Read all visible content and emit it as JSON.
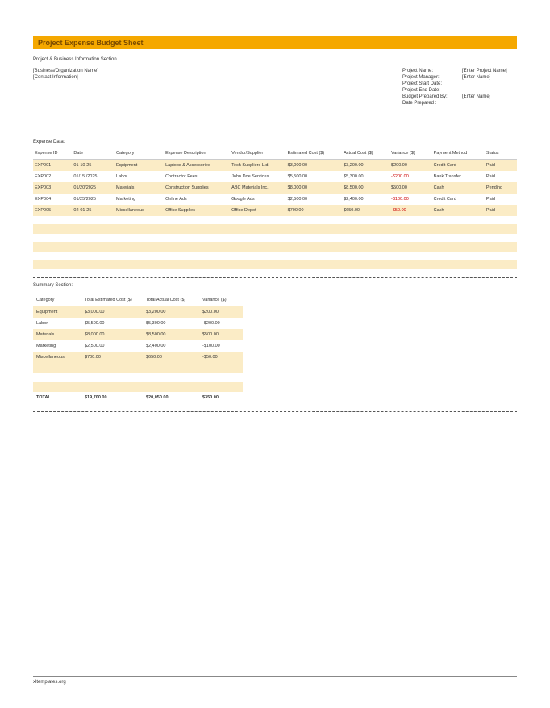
{
  "title": "Project Expense Budget Sheet",
  "section_info": "Project & Business Information Section",
  "left_info": [
    "[Business/Organization Name]",
    "[Contact Information]"
  ],
  "right_info": [
    {
      "k": "Project Name:",
      "v": "[Enter Project Name]"
    },
    {
      "k": "Project Manager:",
      "v": "[Enter Name]"
    },
    {
      "k": "Project Start Date:",
      "v": ""
    },
    {
      "k": "Project End Date:",
      "v": ""
    },
    {
      "k": "Budget Prepared By:",
      "v": "[Enter Name]"
    },
    {
      "k": "Date Prepared :",
      "v": ""
    }
  ],
  "expense_label": "Expense Data:",
  "exp_headers": [
    "Expense ID",
    "Date",
    "Category",
    "Expense Description",
    "Vendor/Supplier",
    "Estimated Cost ($)",
    "Actual Cost ($)",
    "Variance ($)",
    "Payment Method",
    "Status"
  ],
  "exp_rows": [
    {
      "d": [
        "EXP001",
        "01-10-25",
        "Equipment",
        "Laptops & Accessories",
        "Tech Suppliers Ltd.",
        "$3,000.00",
        "$3,200.00",
        "$200.00",
        "Credit Card",
        "Paid"
      ],
      "neg": false
    },
    {
      "d": [
        "EXP002",
        "01/15 /2025",
        "Labor",
        "Contractor Fees",
        "John Doe Services",
        "$5,500.00",
        "$5,300.00",
        "-$200.00",
        "Bank Transfer",
        "Paid"
      ],
      "neg": true
    },
    {
      "d": [
        "EXP003",
        "01/20/2025",
        "Materials",
        "Construction Supplies",
        "ABC Materials Inc.",
        "$8,000.00",
        "$8,500.00",
        "$500.00",
        "Cash",
        "Pending"
      ],
      "neg": false
    },
    {
      "d": [
        "EXP004",
        "01/25/2025",
        "Marketing",
        "Online Ads",
        "Google Ads",
        "$2,500.00",
        "$2,400.00",
        "-$100.00",
        "Credit Card",
        "Paid"
      ],
      "neg": true
    },
    {
      "d": [
        "EXP005",
        "02-01-25",
        "Miscellaneous",
        "Office Supplies",
        "Office Depot",
        "$700.00",
        "$650.00",
        "-$50.00",
        "Cash",
        "Paid"
      ],
      "neg": true
    }
  ],
  "summary_label": "Summary Section:",
  "sum_headers": [
    "Category",
    "Total Estimated Cost ($)",
    "Total Actual Cost ($)",
    "Variance ($)"
  ],
  "sum_rows": [
    [
      "Equipment",
      "$3,000.00",
      "$3,200.00",
      "$200.00"
    ],
    [
      "Labor",
      "$5,500.00",
      "$5,300.00",
      "-$200.00"
    ],
    [
      "Materials",
      "$8,000.00",
      "$8,500.00",
      "$500.00"
    ],
    [
      "Marketing",
      "$2,500.00",
      "$2,400.00",
      "-$100.00"
    ],
    [
      "Miscellaneous",
      "$700.00",
      "$650.00",
      "-$50.00"
    ]
  ],
  "total_row": [
    "TOTAL",
    "$19,700.00",
    "$20,050.00",
    "$350.00"
  ],
  "footer": "xltemplates.org",
  "colors": {
    "accent": "#f5a800",
    "stripe": "#fbecc6",
    "title_text": "#7a4a00",
    "neg": "#c00"
  },
  "col_widths": {
    "exp": [
      "46",
      "50",
      "58",
      "78",
      "66",
      "66",
      "56",
      "50",
      "62",
      "38"
    ],
    "sum": [
      "60",
      "76",
      "70",
      "54"
    ]
  }
}
